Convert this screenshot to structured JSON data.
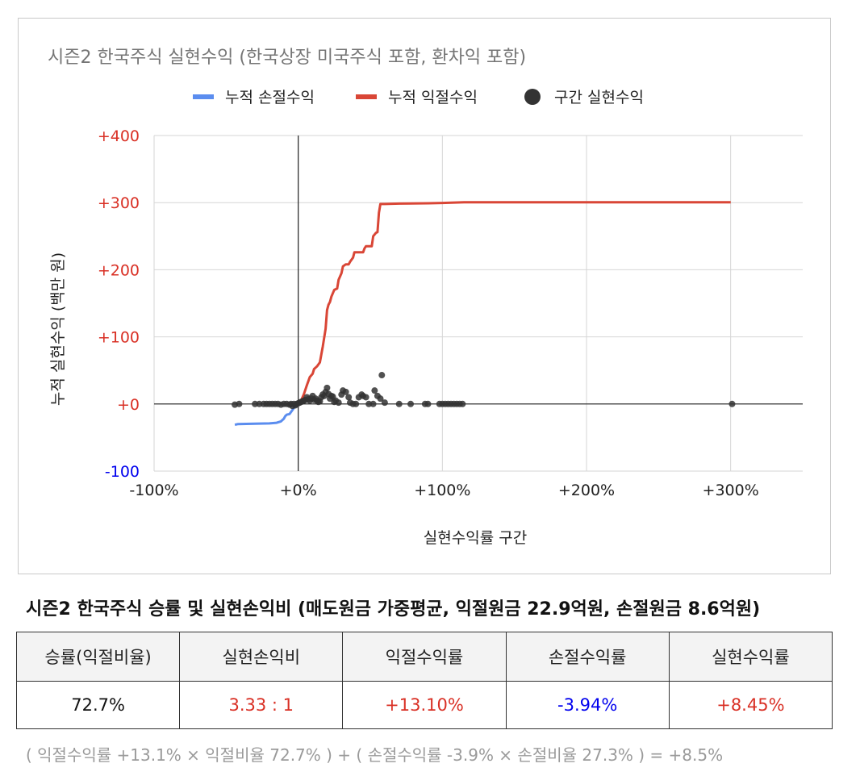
{
  "chart_data": {
    "type": "line+scatter",
    "title": "시즌2 한국주식 실현수익 (한국상장 미국주식 포함, 환차익 포함)",
    "xlabel": "실현수익률 구간",
    "ylabel": "누적 실현수익 (백만 원)",
    "xlim": [
      -100,
      350
    ],
    "ylim": [
      -100,
      400
    ],
    "x_ticks": [
      {
        "value": -100,
        "label": "-100%"
      },
      {
        "value": 0,
        "label": "+0%"
      },
      {
        "value": 100,
        "label": "+100%"
      },
      {
        "value": 200,
        "label": "+200%"
      },
      {
        "value": 300,
        "label": "+300%"
      }
    ],
    "y_ticks": [
      {
        "value": -100,
        "label": "-100",
        "color": "#0000ee"
      },
      {
        "value": 0,
        "label": "+0",
        "color": "#d93025"
      },
      {
        "value": 100,
        "label": "+100",
        "color": "#d93025"
      },
      {
        "value": 200,
        "label": "+200",
        "color": "#d93025"
      },
      {
        "value": 300,
        "label": "+300",
        "color": "#d93025"
      },
      {
        "value": 400,
        "label": "+400",
        "color": "#d93025"
      }
    ],
    "grid": true,
    "legend_position": "top",
    "series": [
      {
        "name": "누적 손절수익",
        "kind": "line",
        "color": "#5b8def",
        "points": [
          [
            -44,
            -31
          ],
          [
            -42,
            -30
          ],
          [
            -30,
            -29.5
          ],
          [
            -20,
            -29
          ],
          [
            -15,
            -28
          ],
          [
            -12,
            -26
          ],
          [
            -10,
            -22
          ],
          [
            -9,
            -18
          ],
          [
            -8,
            -16
          ],
          [
            -6,
            -15
          ],
          [
            -5,
            -12
          ],
          [
            -4,
            -9
          ],
          [
            -3,
            -6
          ],
          [
            -2,
            -4
          ],
          [
            -1,
            -2
          ],
          [
            0,
            0
          ]
        ]
      },
      {
        "name": "누적 익절수익",
        "kind": "line",
        "color": "#d94636",
        "points": [
          [
            0,
            0
          ],
          [
            2,
            5
          ],
          [
            4,
            15
          ],
          [
            6,
            28
          ],
          [
            8,
            40
          ],
          [
            10,
            45
          ],
          [
            11,
            52
          ],
          [
            13,
            56
          ],
          [
            15,
            62
          ],
          [
            17,
            85
          ],
          [
            19,
            112
          ],
          [
            20,
            140
          ],
          [
            21,
            148
          ],
          [
            22,
            152
          ],
          [
            23,
            160
          ],
          [
            25,
            170
          ],
          [
            27,
            172
          ],
          [
            28,
            185
          ],
          [
            30,
            195
          ],
          [
            31,
            205
          ],
          [
            33,
            208
          ],
          [
            35,
            208
          ],
          [
            36,
            212
          ],
          [
            38,
            218
          ],
          [
            39,
            226
          ],
          [
            45,
            226
          ],
          [
            46,
            232
          ],
          [
            47,
            235
          ],
          [
            51,
            235
          ],
          [
            52,
            250
          ],
          [
            54,
            255
          ],
          [
            55,
            256
          ],
          [
            56,
            285
          ],
          [
            57,
            298
          ],
          [
            60,
            298
          ],
          [
            70,
            298.5
          ],
          [
            90,
            299
          ],
          [
            100,
            299.5
          ],
          [
            115,
            300.5
          ],
          [
            200,
            300.5
          ],
          [
            300,
            300.5
          ]
        ]
      },
      {
        "name": "구간 실현수익",
        "kind": "scatter",
        "color": "#333333",
        "points": [
          [
            -44,
            -1
          ],
          [
            -41,
            0
          ],
          [
            -30,
            0
          ],
          [
            -27,
            0
          ],
          [
            -24,
            0
          ],
          [
            -22,
            0
          ],
          [
            -20,
            0
          ],
          [
            -18,
            0
          ],
          [
            -16,
            0
          ],
          [
            -14,
            0
          ],
          [
            -12,
            -1
          ],
          [
            -10,
            0
          ],
          [
            -8,
            0
          ],
          [
            -6,
            -1
          ],
          [
            -5,
            0
          ],
          [
            -4,
            -3
          ],
          [
            -3,
            0
          ],
          [
            -2,
            -2
          ],
          [
            -1,
            0
          ],
          [
            0,
            1
          ],
          [
            1,
            2
          ],
          [
            2,
            3
          ],
          [
            3,
            4
          ],
          [
            4,
            5
          ],
          [
            5,
            6
          ],
          [
            6,
            10
          ],
          [
            7,
            7
          ],
          [
            8,
            5
          ],
          [
            9,
            8
          ],
          [
            10,
            12
          ],
          [
            11,
            6
          ],
          [
            12,
            8
          ],
          [
            13,
            5
          ],
          [
            14,
            3
          ],
          [
            15,
            4
          ],
          [
            16,
            10
          ],
          [
            17,
            14
          ],
          [
            18,
            12
          ],
          [
            19,
            18
          ],
          [
            20,
            24
          ],
          [
            21,
            15
          ],
          [
            22,
            8
          ],
          [
            23,
            12
          ],
          [
            24,
            11
          ],
          [
            25,
            3
          ],
          [
            26,
            5
          ],
          [
            28,
            2
          ],
          [
            30,
            14
          ],
          [
            31,
            20
          ],
          [
            33,
            18
          ],
          [
            35,
            10
          ],
          [
            36,
            2
          ],
          [
            38,
            0
          ],
          [
            40,
            0
          ],
          [
            42,
            10
          ],
          [
            44,
            14
          ],
          [
            45,
            12
          ],
          [
            47,
            10
          ],
          [
            49,
            0
          ],
          [
            52,
            0
          ],
          [
            53,
            20
          ],
          [
            55,
            12
          ],
          [
            57,
            8
          ],
          [
            58,
            43
          ],
          [
            60,
            2
          ],
          [
            70,
            0
          ],
          [
            78,
            0
          ],
          [
            88,
            0
          ],
          [
            90,
            0
          ],
          [
            98,
            0
          ],
          [
            100,
            0
          ],
          [
            102,
            0
          ],
          [
            104,
            0
          ],
          [
            106,
            0
          ],
          [
            108,
            0
          ],
          [
            110,
            0
          ],
          [
            112,
            0
          ],
          [
            114,
            0
          ],
          [
            301,
            0
          ]
        ]
      }
    ]
  },
  "summary": {
    "title": "시즌2 한국주식 승률 및 실현손익비 (매도원금 가중평균, 익절원금 22.9억원, 손절원금 8.6억원)",
    "headers": [
      "승률(익절비율)",
      "실현손익비",
      "익절수익률",
      "손절수익률",
      "실현수익률"
    ],
    "values": [
      "72.7%",
      "3.33 : 1",
      "+13.10%",
      "-3.94%",
      "+8.45%"
    ],
    "value_colors": [
      "#111111",
      "#d93025",
      "#d93025",
      "#0000ee",
      "#d93025"
    ],
    "formula": "( 익절수익률 +13.1% × 익절비율 72.7% ) + ( 손절수익률 -3.9% × 손절비율 27.3% ) = +8.5%"
  }
}
